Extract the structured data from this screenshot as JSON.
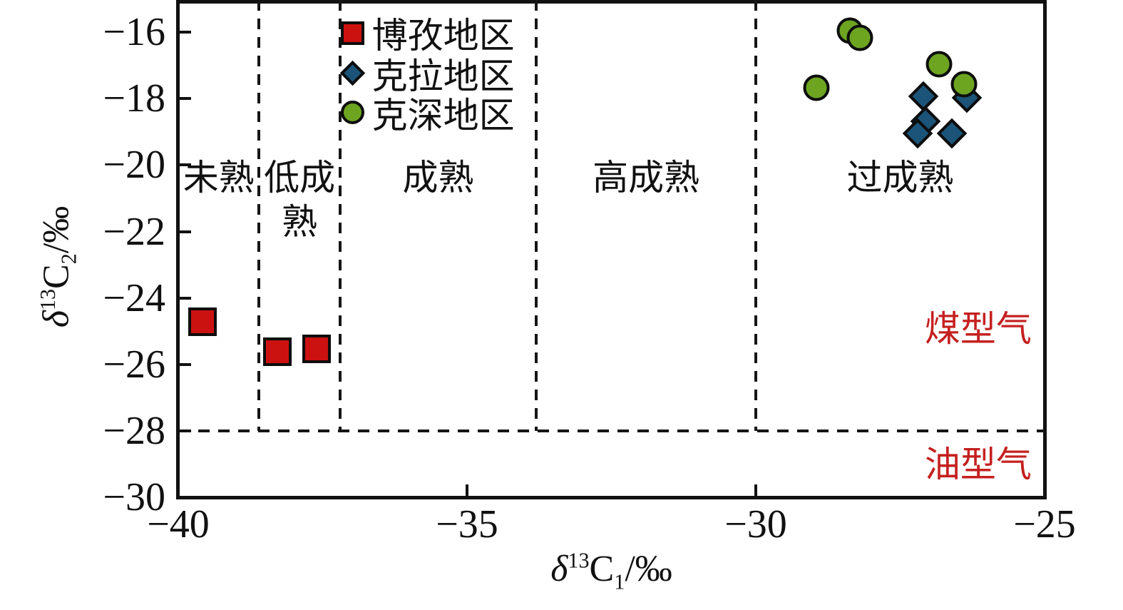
{
  "chart_data": {
    "type": "scatter",
    "background": "#ffffff",
    "frame_color": "#111111",
    "xlabel": {
      "delta": "δ",
      "sup": "13",
      "base": "C",
      "sub": "1",
      "suffix": "/‰"
    },
    "ylabel": {
      "delta": "δ",
      "sup": "13",
      "base": "C",
      "sub": "2",
      "suffix": "/‰"
    },
    "xlim": [
      -40,
      -25
    ],
    "ylim": [
      -30,
      -15.03
    ],
    "grid": false,
    "x_ticks": {
      "values": [
        -40,
        -35,
        -30,
        -25
      ],
      "labels": [
        "−40",
        "−35",
        "−30",
        "−25"
      ],
      "marks": [
        -35,
        -30
      ]
    },
    "y_ticks": {
      "values": [
        -16,
        -18,
        -20,
        -22,
        -24,
        -26,
        -28,
        -30
      ],
      "labels": [
        "−16",
        "−18",
        "−20",
        "−22",
        "−24",
        "−26",
        "−28",
        "−30"
      ],
      "marks": [
        -16,
        -18,
        -20,
        -22,
        -24,
        -26,
        -28
      ]
    },
    "maturity_boundaries_x": [
      -38.6,
      -37.2,
      -33.8,
      -30
    ],
    "maturity_boundaries_end_y": -28,
    "gas_type_divider_y": -28,
    "zone_labels": [
      {
        "text": "未熟",
        "lines": [
          "未熟"
        ],
        "x": -39.3,
        "y": -20.37
      },
      {
        "text": "低成熟",
        "lines": [
          "低成",
          "熟"
        ],
        "x": -37.9,
        "y": -20.37
      },
      {
        "text": "成熟",
        "lines": [
          "成熟"
        ],
        "x": -35.5,
        "y": -20.37
      },
      {
        "text": "高成熟",
        "lines": [
          "高成熟"
        ],
        "x": -31.9,
        "y": -20.37
      },
      {
        "text": "过成熟",
        "lines": [
          "过成熟"
        ],
        "x": -27.5,
        "y": -20.37
      }
    ],
    "region_labels": [
      {
        "text": "煤型气",
        "x": -26.15,
        "y": -24.85,
        "color": "#c52020"
      },
      {
        "text": "油型气",
        "x": -26.15,
        "y": -28.93,
        "color": "#c52020"
      }
    ],
    "legend": {
      "anchor_x": -36.98,
      "rows_y": [
        -16.02,
        -17.24,
        -18.42
      ],
      "items": [
        {
          "label": "博孜地区",
          "marker": "square",
          "fill": "#cc1111"
        },
        {
          "label": "克拉地区",
          "marker": "diamond",
          "fill": "#1b5478"
        },
        {
          "label": "克深地区",
          "marker": "circle",
          "fill": "#6da521"
        }
      ]
    },
    "series": [
      {
        "name": "博孜地区",
        "marker": "square",
        "fill": "#cc1111",
        "stroke": "#0d0d0d",
        "points": [
          [
            -39.58,
            -24.72
          ],
          [
            -38.28,
            -25.62
          ],
          [
            -37.6,
            -25.53
          ]
        ]
      },
      {
        "name": "克拉地区",
        "marker": "diamond",
        "fill": "#1b5478",
        "stroke": "#0d0d0d",
        "points": [
          [
            -27.1,
            -17.93
          ],
          [
            -26.35,
            -17.98
          ],
          [
            -27.06,
            -18.68
          ],
          [
            -27.2,
            -19.05
          ],
          [
            -26.6,
            -19.05
          ]
        ]
      },
      {
        "name": "克深地区",
        "marker": "circle",
        "fill": "#6da521",
        "stroke": "#0d0d0d",
        "points": [
          [
            -28.37,
            -15.96
          ],
          [
            -28.2,
            -16.17
          ],
          [
            -26.83,
            -16.97
          ],
          [
            -26.4,
            -17.57
          ],
          [
            -28.95,
            -17.68
          ]
        ]
      }
    ]
  }
}
